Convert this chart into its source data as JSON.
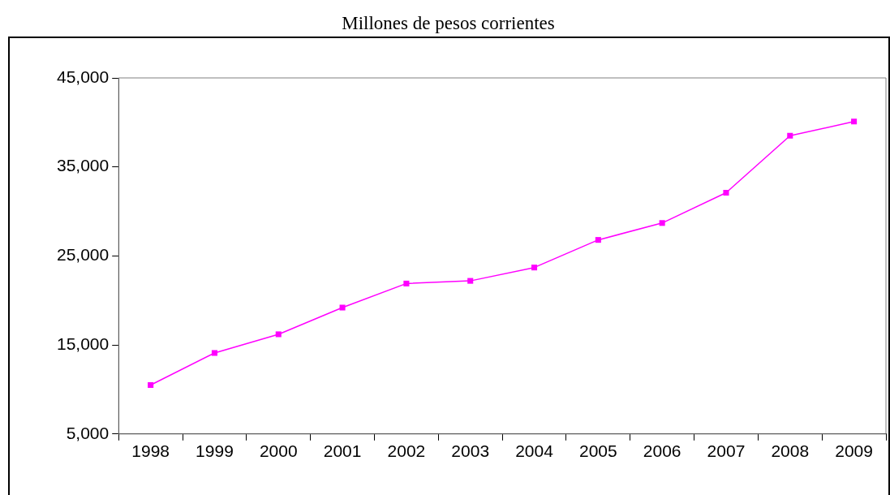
{
  "chart_data": {
    "type": "line",
    "title": "Millones de pesos corrientes",
    "categories": [
      "1998",
      "1999",
      "2000",
      "2001",
      "2002",
      "2003",
      "2004",
      "2005",
      "2006",
      "2007",
      "2008",
      "2009"
    ],
    "series": [
      {
        "color": "#ff00ff",
        "values": [
          10500,
          14100,
          16200,
          19200,
          21900,
          22200,
          23700,
          26800,
          28700,
          32100,
          38500,
          40100
        ]
      }
    ],
    "ylim": [
      5000,
      45000
    ],
    "yticks": [
      {
        "value": 5000,
        "label": "5,000"
      },
      {
        "value": 15000,
        "label": "15,000"
      },
      {
        "value": 25000,
        "label": "25,000"
      },
      {
        "value": 35000,
        "label": "35,000"
      },
      {
        "value": 45000,
        "label": "45,000"
      }
    ],
    "grid": false,
    "legend": false,
    "marker": "square",
    "line_style": "solid"
  }
}
